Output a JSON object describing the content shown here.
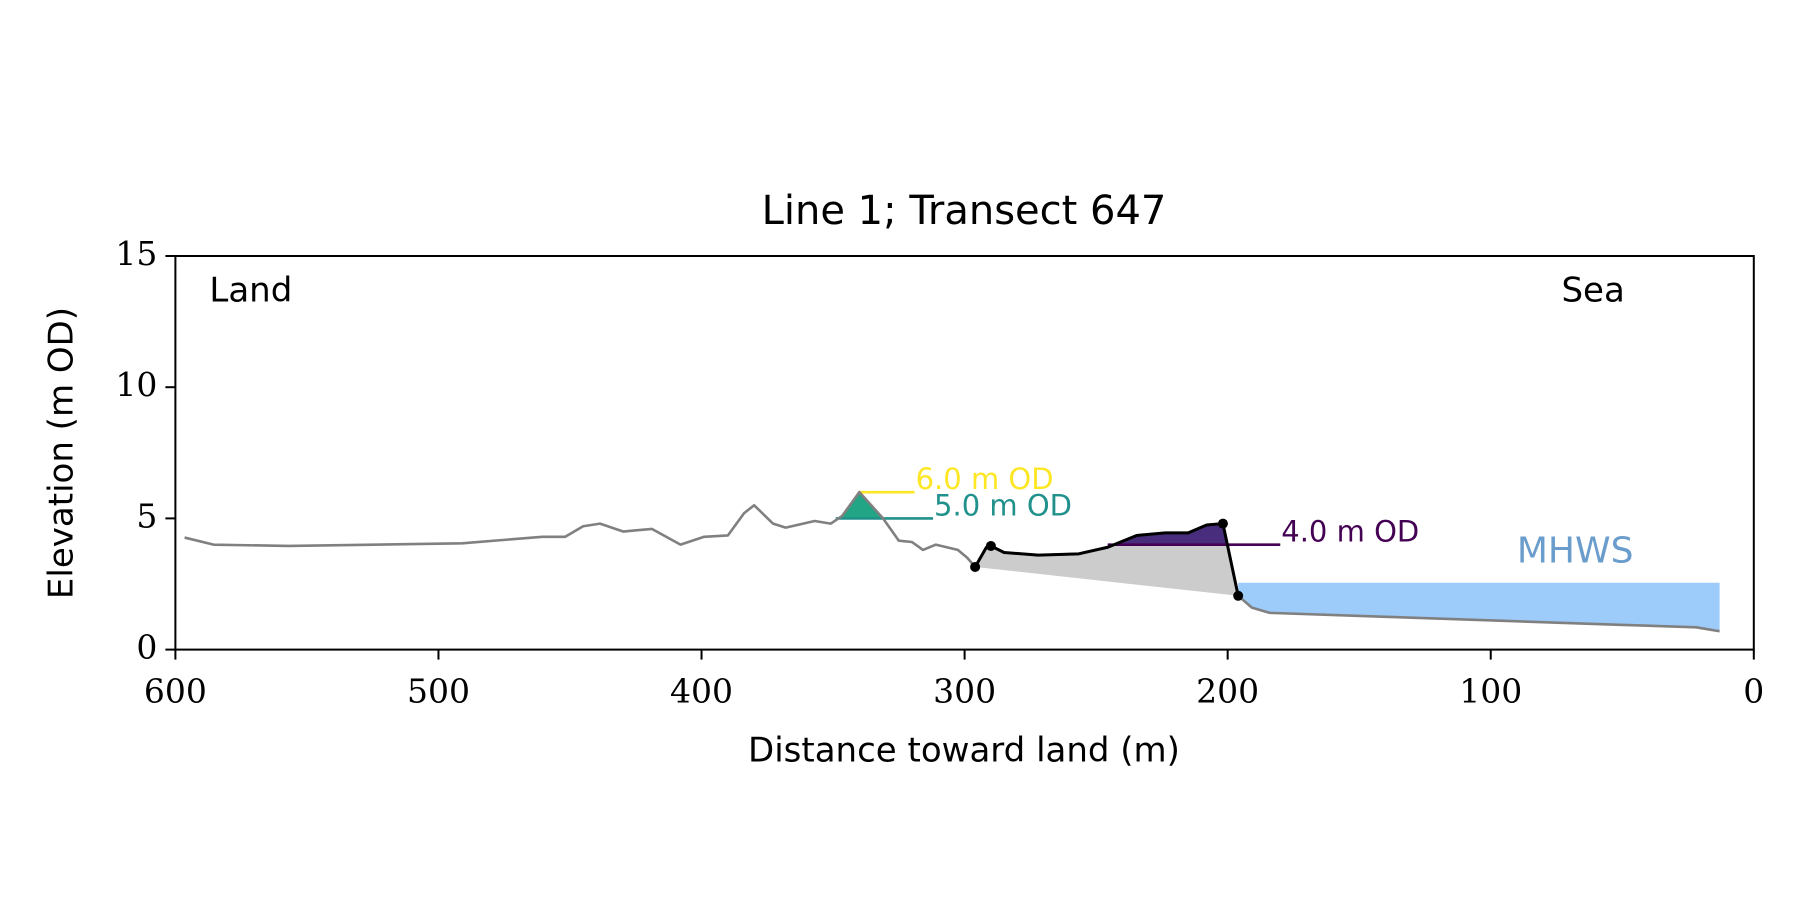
{
  "chart_data": {
    "type": "line",
    "title": "Line 1; Transect 647",
    "x_label": "Distance toward land (m)",
    "y_label": "Elevation (m OD)",
    "xlim": [
      600,
      0
    ],
    "xticks": [
      600,
      500,
      400,
      300,
      200,
      100,
      0
    ],
    "ylim": [
      0,
      15
    ],
    "yticks": [
      0,
      5,
      10,
      15
    ],
    "corner_labels": {
      "left": "Land",
      "right": "Sea"
    },
    "series": [
      {
        "color": "#808080",
        "x": [
          596.5,
          585.5,
          557,
          491,
          460.5,
          451.8,
          445,
          438.6,
          429.8,
          418.9,
          408,
          399,
          390,
          383.8,
          380,
          372.8,
          368,
          357,
          350.9,
          346.5,
          340,
          335.5,
          331,
          325,
          320,
          315.8,
          311,
          302.6,
          299,
          296,
          291.7,
          290,
          285,
          272,
          256.6,
          245.6,
          234.6,
          223.7,
          215,
          208,
          201.8,
          196,
          190.8,
          184,
          140,
          96.5,
          52.6,
          21.9,
          13
        ],
        "values": [
          4.27,
          4.0,
          3.95,
          4.05,
          4.3,
          4.3,
          4.7,
          4.8,
          4.5,
          4.6,
          4.0,
          4.3,
          4.35,
          5.2,
          5.5,
          4.8,
          4.65,
          4.9,
          4.8,
          5.1,
          6.0,
          5.5,
          5.0,
          4.15,
          4.1,
          3.8,
          4.0,
          3.8,
          3.5,
          3.15,
          3.9,
          3.95,
          3.7,
          3.6,
          3.65,
          3.9,
          4.35,
          4.45,
          4.45,
          4.75,
          4.8,
          2.05,
          1.6,
          1.4,
          1.25,
          1.1,
          0.95,
          0.85,
          0.7
        ]
      },
      {
        "color": "#000000",
        "fill_color": "#cccccc",
        "x": [
          296,
          291.7,
          290,
          285,
          272,
          256.6,
          245.6,
          234.6,
          223.7,
          215,
          208,
          201.8,
          196
        ],
        "values": [
          3.15,
          3.9,
          3.95,
          3.7,
          3.6,
          3.65,
          3.9,
          4.35,
          4.45,
          4.45,
          4.75,
          4.8,
          2.05
        ]
      }
    ],
    "points": {
      "color": "#000000",
      "x": [
        296,
        290,
        201.8,
        196
      ],
      "values": [
        3.15,
        3.95,
        4.8,
        2.05
      ]
    },
    "levels": [
      {
        "value": 4.0,
        "label": "4.0 m OD",
        "color": "#440154",
        "fill_color": "#472d7b",
        "x": [
          245.6,
          180
        ]
      },
      {
        "value": 5.0,
        "label": "5.0 m OD",
        "color": "#21918c",
        "fill_color": "#21a585",
        "x": [
          349,
          312
        ]
      },
      {
        "value": 6.0,
        "label": "6.0 m OD",
        "color": "#fde725",
        "fill_color": "#fde725",
        "x": [
          340,
          319
        ]
      }
    ],
    "mhws": {
      "value": 2.55,
      "label": "MHWS",
      "x": [
        196,
        13
      ],
      "color": "#9dcbfa",
      "label_color": "#6a9ccc"
    }
  }
}
